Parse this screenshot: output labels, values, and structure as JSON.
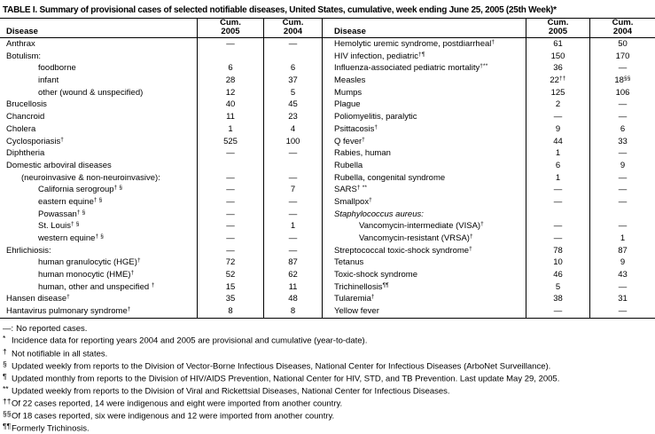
{
  "title": "TABLE I. Summary of provisional cases of selected notifiable diseases, United States, cumulative, week ending June 25, 2005 (25th Week)*",
  "header": {
    "disease": "Disease",
    "cum": "Cum.",
    "y2005": "2005",
    "y2004": "2004"
  },
  "left_rows": [
    {
      "disease": "Anthrax",
      "c05": "—",
      "c04": "—"
    },
    {
      "disease": "Botulism:",
      "c05": "",
      "c04": ""
    },
    {
      "disease": "foodborne",
      "ind": "ind2",
      "c05": "6",
      "c04": "6"
    },
    {
      "disease": "infant",
      "ind": "ind2",
      "c05": "28",
      "c04": "37"
    },
    {
      "disease": "other (wound & unspecified)",
      "ind": "ind2",
      "c05": "12",
      "c04": "5"
    },
    {
      "disease": "Brucellosis",
      "c05": "40",
      "c04": "45"
    },
    {
      "disease": "Chancroid",
      "c05": "11",
      "c04": "23"
    },
    {
      "disease": "Cholera",
      "c05": "1",
      "c04": "4"
    },
    {
      "disease": "Cyclosporiasis",
      "sup": "†",
      "c05": "525",
      "c04": "100"
    },
    {
      "disease": "Diphtheria",
      "c05": "—",
      "c04": "—"
    },
    {
      "disease": "Domestic arboviral diseases",
      "c05": "",
      "c04": ""
    },
    {
      "disease": "(neuroinvasive & non-neuroinvasive):",
      "ind": "ind1",
      "c05": "—",
      "c04": "—"
    },
    {
      "disease": "California serogroup",
      "sup": "† §",
      "ind": "ind2",
      "c05": "—",
      "c04": "7"
    },
    {
      "disease": "eastern equine",
      "sup": "† §",
      "ind": "ind2",
      "c05": "—",
      "c04": "—"
    },
    {
      "disease": "Powassan",
      "sup": "† §",
      "ind": "ind2",
      "c05": "—",
      "c04": "—"
    },
    {
      "disease": "St. Louis",
      "sup": "† §",
      "ind": "ind2",
      "c05": "—",
      "c04": "1"
    },
    {
      "disease": "western equine",
      "sup": "† §",
      "ind": "ind2",
      "c05": "—",
      "c04": "—"
    },
    {
      "disease": "Ehrlichiosis:",
      "c05": "—",
      "c04": "—"
    },
    {
      "disease": "human granulocytic (HGE)",
      "sup": "†",
      "ind": "ind2",
      "c05": "72",
      "c04": "87"
    },
    {
      "disease": "human monocytic (HME)",
      "sup": "†",
      "ind": "ind2",
      "c05": "52",
      "c04": "62"
    },
    {
      "disease": "human, other and unspecified ",
      "sup": "†",
      "ind": "ind2",
      "c05": "15",
      "c04": "11"
    },
    {
      "disease": "Hansen disease",
      "sup": "†",
      "c05": "35",
      "c04": "48"
    },
    {
      "disease": "Hantavirus pulmonary syndrome",
      "sup": "†",
      "c05": "8",
      "c04": "8"
    }
  ],
  "right_rows": [
    {
      "disease": "Hemolytic uremic syndrome, postdiarrheal",
      "sup": "†",
      "c05": "61",
      "c04": "50"
    },
    {
      "disease": "HIV infection, pediatric",
      "sup": "†¶",
      "c05": "150",
      "c04": "170"
    },
    {
      "disease": "Influenza-associated pediatric mortality",
      "sup": "†**",
      "c05": "36",
      "c04": "—"
    },
    {
      "disease": "Measles",
      "c05": "22",
      "c05s": "††",
      "c04": "18",
      "c04s": "§§"
    },
    {
      "disease": "Mumps",
      "c05": "125",
      "c04": "106"
    },
    {
      "disease": "Plague",
      "c05": "2",
      "c04": "—"
    },
    {
      "disease": "Poliomyelitis, paralytic",
      "c05": "—",
      "c04": "—"
    },
    {
      "disease": "Psittacosis",
      "sup": "†",
      "c05": "9",
      "c04": "6"
    },
    {
      "disease": "Q fever",
      "sup": "†",
      "c05": "44",
      "c04": "33"
    },
    {
      "disease": "Rabies, human",
      "c05": "1",
      "c04": "—"
    },
    {
      "disease": "Rubella",
      "c05": "6",
      "c04": "9"
    },
    {
      "disease": "Rubella, congenital syndrome",
      "c05": "1",
      "c04": "—"
    },
    {
      "disease": "SARS",
      "sup": "† **",
      "c05": "—",
      "c04": "—"
    },
    {
      "disease": "Smallpox",
      "sup": "†",
      "c05": "—",
      "c04": "—"
    },
    {
      "disease": "Staphylococcus aureus:",
      "style": "it",
      "c05": "",
      "c04": ""
    },
    {
      "disease": "Vancomycin-intermediate (VISA)",
      "sup": "†",
      "ind": "ind2",
      "c05": "—",
      "c04": "—"
    },
    {
      "disease": "Vancomycin-resistant (VRSA)",
      "sup": "†",
      "ind": "ind2",
      "c05": "—",
      "c04": "1"
    },
    {
      "disease": "Streptococcal toxic-shock syndrome",
      "sup": "†",
      "c05": "78",
      "c04": "87"
    },
    {
      "disease": "Tetanus",
      "c05": "10",
      "c04": "9"
    },
    {
      "disease": "Toxic-shock syndrome",
      "c05": "46",
      "c04": "43"
    },
    {
      "disease": "Trichinellosis",
      "sup": "¶¶",
      "c05": "5",
      "c04": "—"
    },
    {
      "disease": "Tularemia",
      "sup": "†",
      "c05": "38",
      "c04": "31"
    },
    {
      "disease": "Yellow fever",
      "c05": "—",
      "c04": "—"
    }
  ],
  "footnotes": [
    {
      "marker": "—:",
      "mclass": "dashmark",
      "text": "No reported cases."
    },
    {
      "marker": "*",
      "mclass": "supmark",
      "text": "Incidence data for reporting years 2004 and 2005 are provisional and cumulative (year-to-date)."
    },
    {
      "marker": "†",
      "mclass": "supmark",
      "text": "Not notifiable in all states."
    },
    {
      "marker": "§",
      "mclass": "supmark",
      "text": "Updated weekly from reports to the Division of Vector-Borne Infectious Diseases, National Center for Infectious Diseases (ArboNet Surveillance)."
    },
    {
      "marker": "¶",
      "mclass": "supmark",
      "text": "Updated monthly from reports to the Division of HIV/AIDS Prevention, National Center for HIV, STD, and TB Prevention. Last update May 29, 2005."
    },
    {
      "marker": "**",
      "mclass": "supmark",
      "text": "Updated weekly from reports to the Division of Viral and Rickettsial Diseases, National Center for Infectious Diseases."
    },
    {
      "marker": "††",
      "mclass": "supmark",
      "text": "Of 22 cases reported, 14 were indigenous and eight were imported from another country."
    },
    {
      "marker": "§§",
      "mclass": "supmark",
      "text": "Of 18 cases reported, six were indigenous and 12 were imported from another country."
    },
    {
      "marker": "¶¶",
      "mclass": "supmark",
      "text": "Formerly Trichinosis."
    }
  ]
}
